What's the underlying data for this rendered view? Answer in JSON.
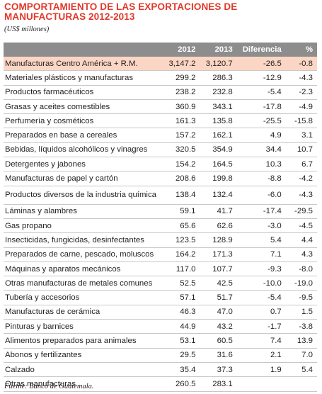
{
  "title": "COMPORTAMIENTO DE LAS EXPORTACIONES DE MANUFACTURAS 2012-2013",
  "subtitle": "(US$ millones)",
  "columns": [
    "",
    "2012",
    "2013",
    "Diferencia",
    "%"
  ],
  "rows": [
    {
      "label": "Manufacturas Centro América + R.M.",
      "v2012": "3,147.2",
      "v2013": "3,120.7",
      "dif": "-26.5",
      "pct": "-0.8"
    },
    {
      "label": "Materiales plásticos y manufacturas",
      "v2012": "299.2",
      "v2013": "286.3",
      "dif": "-12.9",
      "pct": "-4.3"
    },
    {
      "label": "Productos farmacéuticos",
      "v2012": "238.2",
      "v2013": "232.8",
      "dif": "-5.4",
      "pct": "-2.3"
    },
    {
      "label": "Grasas y aceites comestibles",
      "v2012": "360.9",
      "v2013": "343.1",
      "dif": "-17.8",
      "pct": "-4.9"
    },
    {
      "label": "Perfumería y cosméticos",
      "v2012": "161.3",
      "v2013": "135.8",
      "dif": "-25.5",
      "pct": "-15.8"
    },
    {
      "label": "Preparados en base a cereales",
      "v2012": "157.2",
      "v2013": "162.1",
      "dif": "4.9",
      "pct": "3.1"
    },
    {
      "label": "Bebidas, líquidos alcohólicos y vinagres",
      "v2012": "320.5",
      "v2013": "354.9",
      "dif": "34.4",
      "pct": "10.7"
    },
    {
      "label": "Detergentes y jabones",
      "v2012": "154.2",
      "v2013": "164.5",
      "dif": "10.3",
      "pct": "6.7"
    },
    {
      "label": "Manufacturas de papel y cartón",
      "v2012": "208.6",
      "v2013": "199.8",
      "dif": "-8.8",
      "pct": "-4.2"
    },
    {
      "label": "Productos diversos de la industria química",
      "v2012": "138.4",
      "v2013": "132.4",
      "dif": "-6.0",
      "pct": "-4.3"
    },
    {
      "label": "Láminas y alambres",
      "v2012": "59.1",
      "v2013": "41.7",
      "dif": "-17.4",
      "pct": "-29.5"
    },
    {
      "label": "Gas propano",
      "v2012": "65.6",
      "v2013": "62.6",
      "dif": "-3.0",
      "pct": "-4.5"
    },
    {
      "label": "Insecticidas, fungicidas, desinfectantes",
      "v2012": "123.5",
      "v2013": "128.9",
      "dif": "5.4",
      "pct": "4.4"
    },
    {
      "label": "Preparados de carne, pescado, moluscos",
      "v2012": "164.2",
      "v2013": "171.3",
      "dif": "7.1",
      "pct": "4.3"
    },
    {
      "label": "Máquinas y aparatos mecánicos",
      "v2012": "117.0",
      "v2013": "107.7",
      "dif": "-9.3",
      "pct": "-8.0"
    },
    {
      "label": "Otras manufacturas de metales comunes",
      "v2012": "52.5",
      "v2013": "42.5",
      "dif": "-10.0",
      "pct": "-19.0"
    },
    {
      "label": "Tubería y accesorios",
      "v2012": "57.1",
      "v2013": "51.7",
      "dif": "-5.4",
      "pct": "-9.5"
    },
    {
      "label": "Manufacturas de cerámica",
      "v2012": "46.3",
      "v2013": "47.0",
      "dif": "0.7",
      "pct": "1.5"
    },
    {
      "label": "Pinturas y barnices",
      "v2012": "44.9",
      "v2013": "43.2",
      "dif": "-1.7",
      "pct": "-3.8"
    },
    {
      "label": "Alimentos preparados para animales",
      "v2012": "53.1",
      "v2013": "60.5",
      "dif": "7.4",
      "pct": "13.9"
    },
    {
      "label": "Abonos y fertilizantes",
      "v2012": "29.5",
      "v2013": "31.6",
      "dif": "2.1",
      "pct": "7.0"
    },
    {
      "label": "Calzado",
      "v2012": "35.4",
      "v2013": "37.3",
      "dif": "1.9",
      "pct": "5.4"
    },
    {
      "label": "Otras manufacturas",
      "v2012": "260.5",
      "v2013": "283.1",
      "dif": "",
      "pct": ""
    }
  ],
  "source": "Fuente: Banco de Guatemala.",
  "colors": {
    "title": "#e2382a",
    "header_bg": "#8d8d8d",
    "highlight_row": "#fbd6c4"
  }
}
